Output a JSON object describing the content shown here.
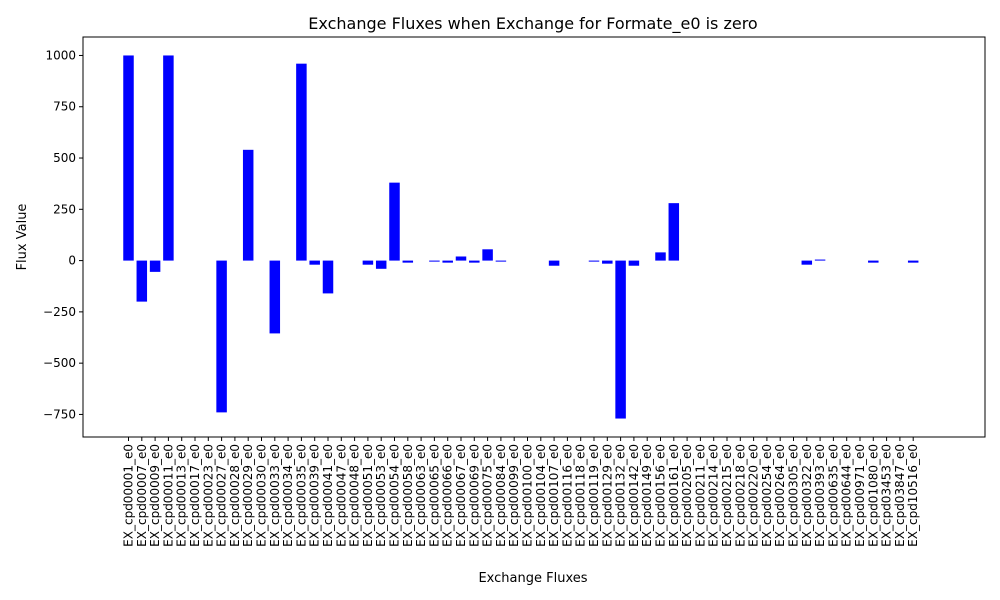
{
  "chart_data": {
    "type": "bar",
    "title": "Exchange Fluxes when Exchange for Formate_e0 is zero",
    "xlabel": "Exchange Fluxes",
    "ylabel": "Flux Value",
    "ylim": [
      -860,
      1090
    ],
    "yticks": [
      -750,
      -500,
      -250,
      0,
      250,
      500,
      750,
      1000
    ],
    "ytick_labels": [
      "−750",
      "−500",
      "−250",
      "0",
      "250",
      "500",
      "750",
      "1000"
    ],
    "bar_color": "#0000ff",
    "grid": false,
    "categories": [
      "EX_cpd00001_e0",
      "EX_cpd00007_e0",
      "EX_cpd00009_e0",
      "EX_cpd00011_e0",
      "EX_cpd00013_e0",
      "EX_cpd00017_e0",
      "EX_cpd00023_e0",
      "EX_cpd00027_e0",
      "EX_cpd00028_e0",
      "EX_cpd00029_e0",
      "EX_cpd00030_e0",
      "EX_cpd00033_e0",
      "EX_cpd00034_e0",
      "EX_cpd00035_e0",
      "EX_cpd00039_e0",
      "EX_cpd00041_e0",
      "EX_cpd00047_e0",
      "EX_cpd00048_e0",
      "EX_cpd00051_e0",
      "EX_cpd00053_e0",
      "EX_cpd00054_e0",
      "EX_cpd00058_e0",
      "EX_cpd00063_e0",
      "EX_cpd00065_e0",
      "EX_cpd00066_e0",
      "EX_cpd00067_e0",
      "EX_cpd00069_e0",
      "EX_cpd00075_e0",
      "EX_cpd00084_e0",
      "EX_cpd00099_e0",
      "EX_cpd00100_e0",
      "EX_cpd00104_e0",
      "EX_cpd00107_e0",
      "EX_cpd00116_e0",
      "EX_cpd00118_e0",
      "EX_cpd00119_e0",
      "EX_cpd00129_e0",
      "EX_cpd00132_e0",
      "EX_cpd00142_e0",
      "EX_cpd00149_e0",
      "EX_cpd00156_e0",
      "EX_cpd00161_e0",
      "EX_cpd00205_e0",
      "EX_cpd00211_e0",
      "EX_cpd00214_e0",
      "EX_cpd00215_e0",
      "EX_cpd00218_e0",
      "EX_cpd00220_e0",
      "EX_cpd00254_e0",
      "EX_cpd00264_e0",
      "EX_cpd00305_e0",
      "EX_cpd00322_e0",
      "EX_cpd00393_e0",
      "EX_cpd00635_e0",
      "EX_cpd00644_e0",
      "EX_cpd00971_e0",
      "EX_cpd01080_e0",
      "EX_cpd03453_e0",
      "EX_cpd03847_e0",
      "EX_cpd10516_e0"
    ],
    "values": [
      1000,
      -200,
      -55,
      1000,
      0,
      0,
      0,
      -740,
      0,
      540,
      0,
      -355,
      0,
      960,
      -20,
      -160,
      0,
      0,
      -20,
      -40,
      380,
      -10,
      0,
      -5,
      -10,
      20,
      -10,
      55,
      -5,
      0,
      0,
      0,
      -25,
      0,
      0,
      -5,
      -15,
      -770,
      -25,
      0,
      40,
      280,
      0,
      0,
      0,
      0,
      0,
      0,
      0,
      0,
      0,
      -20,
      5,
      0,
      0,
      0,
      -10,
      0,
      0,
      -10
    ]
  }
}
